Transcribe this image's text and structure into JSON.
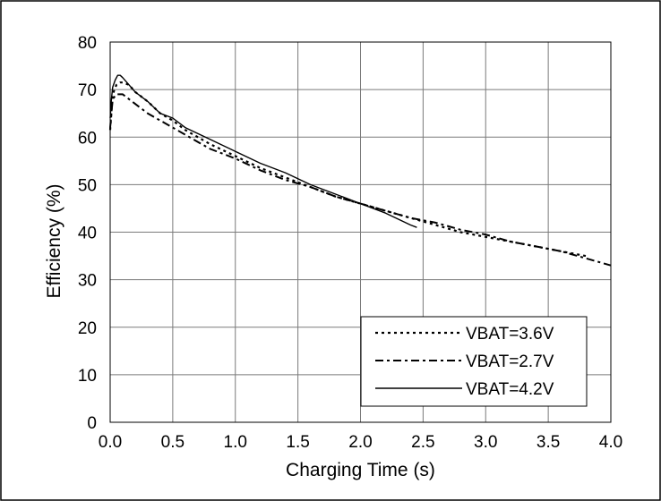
{
  "chart_data": {
    "type": "line",
    "title": "",
    "xlabel": "Charging Time (s)",
    "ylabel": "Efficiency (%)",
    "xlim": [
      0.0,
      4.0
    ],
    "ylim": [
      0,
      80
    ],
    "x_ticks": [
      "0.0",
      "0.5",
      "1.0",
      "1.5",
      "2.0",
      "2.5",
      "3.0",
      "3.5",
      "4.0"
    ],
    "y_ticks": [
      "0",
      "10",
      "20",
      "30",
      "40",
      "50",
      "60",
      "70",
      "80"
    ],
    "grid": true,
    "legend_position": "bottom-right",
    "series": [
      {
        "name": "VBAT=3.6V",
        "style": "dotted",
        "color": "#000000",
        "x": [
          0.0,
          0.02,
          0.05,
          0.08,
          0.1,
          0.15,
          0.2,
          0.3,
          0.4,
          0.5,
          0.6,
          0.8,
          1.0,
          1.2,
          1.4,
          1.6,
          1.8,
          2.0,
          2.2,
          2.4,
          2.6,
          2.8,
          3.0,
          3.2,
          3.4,
          3.6,
          3.8
        ],
        "y": [
          61.5,
          69.0,
          71.0,
          71.5,
          71.5,
          71.0,
          69.5,
          67.5,
          65.0,
          63.5,
          61.5,
          58.5,
          56.0,
          53.5,
          51.5,
          49.5,
          47.5,
          46.0,
          44.5,
          43.0,
          41.5,
          40.0,
          39.0,
          38.0,
          37.0,
          36.0,
          35.0
        ]
      },
      {
        "name": "VBAT=2.7V",
        "style": "dash-dot",
        "color": "#000000",
        "x": [
          0.0,
          0.02,
          0.05,
          0.1,
          0.15,
          0.2,
          0.3,
          0.4,
          0.5,
          0.6,
          0.7,
          0.8,
          1.0,
          1.2,
          1.4,
          1.6,
          1.8,
          2.0,
          2.2,
          2.4,
          2.6,
          2.8,
          3.0,
          3.2,
          3.4,
          3.6,
          3.8,
          4.0
        ],
        "y": [
          62.0,
          68.0,
          69.0,
          69.0,
          68.0,
          67.0,
          65.0,
          63.5,
          62.0,
          60.5,
          59.0,
          57.5,
          55.5,
          53.0,
          51.0,
          49.5,
          47.5,
          46.0,
          44.5,
          43.0,
          42.0,
          40.5,
          39.5,
          38.0,
          37.0,
          36.0,
          34.5,
          33.0
        ]
      },
      {
        "name": "VBAT=4.2V",
        "style": "solid",
        "color": "#000000",
        "x": [
          0.0,
          0.01,
          0.02,
          0.04,
          0.06,
          0.08,
          0.1,
          0.15,
          0.2,
          0.3,
          0.4,
          0.5,
          0.6,
          0.8,
          1.0,
          1.2,
          1.4,
          1.6,
          1.8,
          2.0,
          2.2,
          2.4,
          2.45
        ],
        "y": [
          64.0,
          68.0,
          70.5,
          72.0,
          73.0,
          73.0,
          72.5,
          71.0,
          69.5,
          67.5,
          65.0,
          64.0,
          62.0,
          59.5,
          57.0,
          54.5,
          52.5,
          50.0,
          48.0,
          46.0,
          44.0,
          41.5,
          41.0
        ]
      }
    ]
  }
}
